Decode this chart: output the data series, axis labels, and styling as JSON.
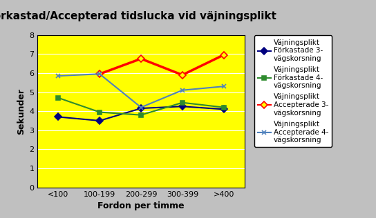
{
  "title": "Förkastad/Accepterad tidslucka vid väjningsplikt",
  "xlabel": "Fordon per timme",
  "ylabel": "Sekunder",
  "categories": [
    "<100",
    "100-199",
    "200-299",
    "300-399",
    ">400"
  ],
  "series": {
    "forkastade_3": {
      "label": "Väjningsplikt\nFörkastade 3-\nvägskorsning",
      "values": [
        3.7,
        3.5,
        4.15,
        4.25,
        4.1
      ],
      "color": "#000080",
      "marker": "D",
      "marker_face": "#000080",
      "linestyle": "-",
      "linewidth": 1.5
    },
    "forkastade_4": {
      "label": "Väjningsplikt\nFörkastade 4-\nvägskorsning",
      "values": [
        4.7,
        3.95,
        3.8,
        4.45,
        4.2
      ],
      "color": "#2e8b2e",
      "marker": "s",
      "marker_face": "#2e8b2e",
      "linestyle": "-",
      "linewidth": 1.5
    },
    "accepterade_3": {
      "label": "Väjningsplikt\nAccepterade 3-\nvägskorsning",
      "values": [
        null,
        5.95,
        6.75,
        5.9,
        6.95
      ],
      "color": "#ff0000",
      "marker": "D",
      "marker_face": "#ffff00",
      "linestyle": "-",
      "linewidth": 2.5
    },
    "accepterade_4": {
      "label": "Väjningsplikt\nAccepterade 4-\nvägskorsning",
      "values": [
        5.85,
        5.95,
        4.2,
        5.1,
        5.3
      ],
      "color": "#4f81bd",
      "marker": "x",
      "marker_face": "#4f81bd",
      "linestyle": "-",
      "linewidth": 1.5
    }
  },
  "ylim": [
    0,
    8
  ],
  "yticks": [
    0,
    1,
    2,
    3,
    4,
    5,
    6,
    7,
    8
  ],
  "background_color": "#ffff00",
  "outer_background": "#c0c0c0",
  "title_fontsize": 11,
  "axis_label_fontsize": 9,
  "tick_fontsize": 8,
  "legend_fontsize": 7.5
}
